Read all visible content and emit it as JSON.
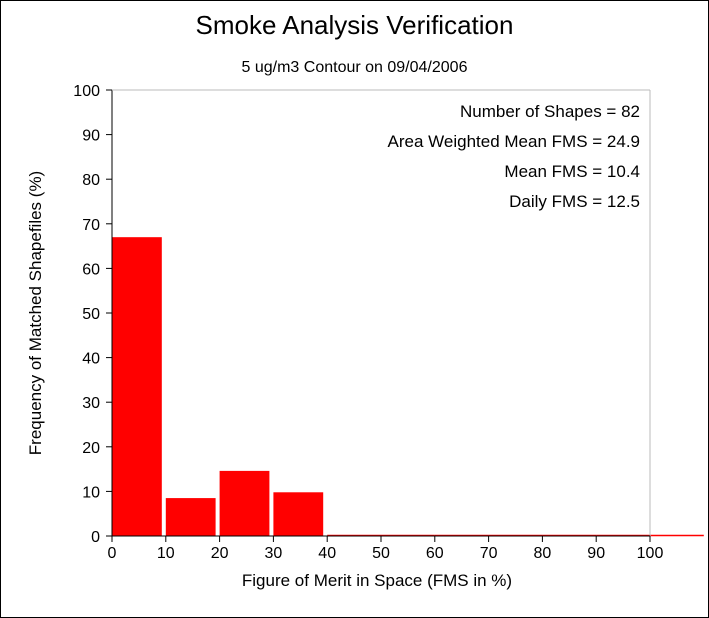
{
  "chart_data": {
    "type": "bar",
    "title": "Smoke Analysis Verification",
    "subtitle": "5 ug/m3 Contour on 09/04/2006",
    "xlabel": "Figure of Merit in Space (FMS in %)",
    "ylabel": "Frequency of Matched Shapefiles (%)",
    "xlim": [
      0,
      100
    ],
    "ylim": [
      0,
      100
    ],
    "xticks": [
      0,
      10,
      20,
      30,
      40,
      50,
      60,
      70,
      80,
      90,
      100
    ],
    "yticks": [
      0,
      10,
      20,
      30,
      40,
      50,
      60,
      70,
      80,
      90,
      100
    ],
    "bin_width": 10,
    "bins": [
      0,
      10,
      20,
      30,
      40,
      50,
      60,
      70,
      80,
      90,
      100
    ],
    "values": [
      67,
      8.5,
      14.6,
      9.8,
      0,
      0,
      0,
      0,
      0,
      0,
      0
    ],
    "bar_color": "#ff0000",
    "grid": false,
    "annotations": [
      "Number of Shapes = 82",
      "Area Weighted Mean FMS = 24.9",
      "Mean FMS = 10.4",
      "Daily FMS = 12.5"
    ]
  }
}
